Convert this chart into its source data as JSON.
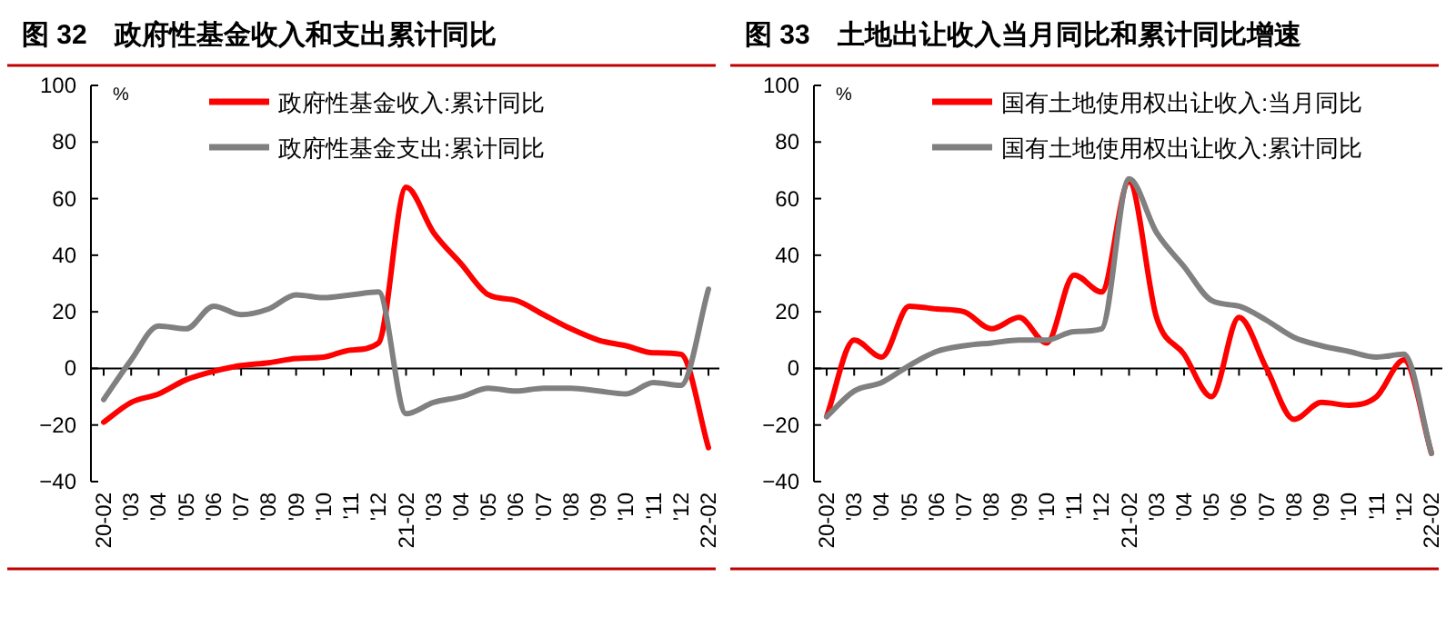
{
  "chart_data": [
    {
      "type": "line",
      "title": "图 32　政府性基金收入和支出累计同比",
      "ylabel": "%",
      "categories": [
        "20-02",
        "'03",
        "'04",
        "'05",
        "'06",
        "'07",
        "'08",
        "'09",
        "'10",
        "'11",
        "'12",
        "21-02",
        "'03",
        "'04",
        "'05",
        "'06",
        "'07",
        "'08",
        "'09",
        "'10",
        "'11",
        "'12",
        "22-02"
      ],
      "series": [
        {
          "name": "政府性基金收入:累计同比",
          "color": "#ff0000",
          "values": [
            -19,
            -12,
            -9,
            -4,
            -1,
            1,
            2,
            3.5,
            4,
            6.5,
            9,
            64,
            48,
            37,
            26,
            24,
            19,
            14,
            10,
            8,
            5.5,
            5,
            -28
          ]
        },
        {
          "name": "政府性基金支出:累计同比",
          "color": "#808080",
          "values": [
            -11,
            3,
            15,
            14,
            22,
            19,
            21,
            26,
            25,
            26,
            27,
            -16,
            -12,
            -10,
            -7,
            -8,
            -7,
            -7,
            -8,
            -9,
            -5,
            -6,
            28
          ]
        }
      ],
      "ylim": [
        -40,
        100
      ],
      "yticks": [
        -40,
        -20,
        0,
        20,
        40,
        60,
        80,
        100
      ],
      "legend": "top"
    },
    {
      "type": "line",
      "title": "图 33　土地出让收入当月同比和累计同比增速",
      "ylabel": "%",
      "categories": [
        "20-02",
        "'03",
        "'04",
        "'05",
        "'06",
        "'07",
        "'08",
        "'09",
        "'10",
        "'11",
        "'12",
        "21-02",
        "'03",
        "'04",
        "'05",
        "'06",
        "'07",
        "'08",
        "'09",
        "'10",
        "'11",
        "'12",
        "22-02"
      ],
      "series": [
        {
          "name": "国有土地使用权出让收入:当月同比",
          "color": "#ff0000",
          "values": [
            -17,
            10,
            4,
            22,
            21,
            20,
            14,
            18,
            9,
            33,
            27,
            66,
            18,
            5,
            -10,
            18,
            0,
            -18,
            -12,
            -13,
            -10,
            3,
            -30
          ]
        },
        {
          "name": "国有土地使用权出让收入:累计同比",
          "color": "#808080",
          "values": [
            -17,
            -8,
            -5,
            1,
            6,
            8,
            9,
            10,
            10,
            13,
            14,
            67,
            48,
            36,
            24,
            22,
            17,
            11,
            8,
            6,
            4,
            5,
            -30
          ]
        }
      ],
      "ylim": [
        -40,
        100
      ],
      "yticks": [
        -40,
        -20,
        0,
        20,
        40,
        60,
        80,
        100
      ],
      "legend": "top"
    }
  ]
}
